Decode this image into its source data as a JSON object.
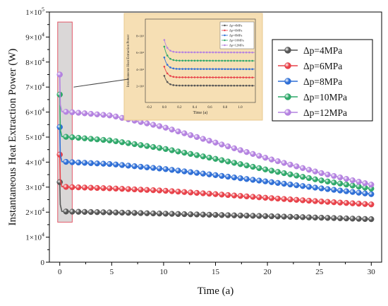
{
  "chart_data": {
    "type": "line",
    "xlabel": "Time (a)",
    "ylabel": "Instantaneous Heat Extraction Power (W)",
    "xlim": [
      -1,
      31
    ],
    "ylim": [
      0,
      100000
    ],
    "x_ticks": [
      0,
      5,
      10,
      15,
      20,
      25,
      30
    ],
    "x_tick_labels": [
      "0",
      "5",
      "10",
      "15",
      "20",
      "25",
      "30"
    ],
    "y_ticks": [
      0,
      10000,
      20000,
      30000,
      40000,
      50000,
      60000,
      70000,
      80000,
      90000,
      100000
    ],
    "y_tick_labels": [
      {
        "mantissa": "0",
        "exp": ""
      },
      {
        "mantissa": "1×10",
        "exp": "4"
      },
      {
        "mantissa": "2×10",
        "exp": "4"
      },
      {
        "mantissa": "3×10",
        "exp": "4"
      },
      {
        "mantissa": "4×10",
        "exp": "4"
      },
      {
        "mantissa": "5×10",
        "exp": "4"
      },
      {
        "mantissa": "6×10",
        "exp": "4"
      },
      {
        "mantissa": "7×10",
        "exp": "4"
      },
      {
        "mantissa": "8×10",
        "exp": "4"
      },
      {
        "mantissa": "9×10",
        "exp": "4"
      },
      {
        "mantissa": "1×10",
        "exp": "5"
      }
    ],
    "legend_position": "top-right",
    "series": [
      {
        "name": "Δp=4MPa",
        "color": "#555555",
        "x": [
          0,
          0.05,
          0.2,
          1,
          5,
          10,
          15,
          20,
          25,
          30
        ],
        "y": [
          32000,
          23000,
          20300,
          20200,
          19900,
          19400,
          18900,
          18400,
          17800,
          17200
        ]
      },
      {
        "name": "Δp=6MPa",
        "color": "#e8424a",
        "x": [
          0,
          0.05,
          0.2,
          1,
          5,
          10,
          15,
          20,
          25,
          30
        ],
        "y": [
          43000,
          33000,
          30200,
          30000,
          29500,
          28600,
          27200,
          25700,
          24300,
          23100
        ]
      },
      {
        "name": "Δp=8MPa",
        "color": "#2f6fd6",
        "x": [
          0,
          0.05,
          0.2,
          1,
          5,
          10,
          15,
          20,
          25,
          30
        ],
        "y": [
          54000,
          43000,
          40200,
          40000,
          39200,
          37300,
          34800,
          32200,
          29600,
          27200
        ]
      },
      {
        "name": "Δp=10MPa",
        "color": "#2fa86a",
        "x": [
          0,
          0.05,
          0.2,
          1,
          5,
          10,
          15,
          20,
          25,
          30
        ],
        "y": [
          67000,
          53000,
          50200,
          50000,
          48600,
          45400,
          41300,
          36900,
          32800,
          29400
        ]
      },
      {
        "name": "Δp=12MPa",
        "color": "#b482e0",
        "x": [
          0,
          0.05,
          0.2,
          1,
          5,
          10,
          15,
          20,
          25,
          30
        ],
        "y": [
          75000,
          63000,
          60200,
          60000,
          58600,
          54000,
          47800,
          41500,
          35800,
          31000
        ]
      }
    ],
    "inset": {
      "xlabel": "Time (a)",
      "ylabel": "Instantaneous Heat Extraction Power",
      "xlim": [
        -0.25,
        1.2
      ],
      "ylim": [
        0,
        100000
      ],
      "x_tick_labels": [
        "-0.2",
        "0.0",
        "0.2",
        "0.4",
        "0.6",
        "0.8",
        "1.0"
      ],
      "y_tick_labels": [
        "2×10⁴",
        "4×10⁴",
        "6×10⁴",
        "8×10⁴"
      ],
      "legend": [
        "Δp=4MPa",
        "Δp=6MPa",
        "Δp=8MPa",
        "Δp=10MPa",
        "Δp=12MPa"
      ],
      "x_range_shown": [
        0,
        1.2
      ]
    },
    "highlight_region": {
      "x": [
        -0.2,
        1.2
      ],
      "y": [
        16000,
        96000
      ]
    }
  }
}
